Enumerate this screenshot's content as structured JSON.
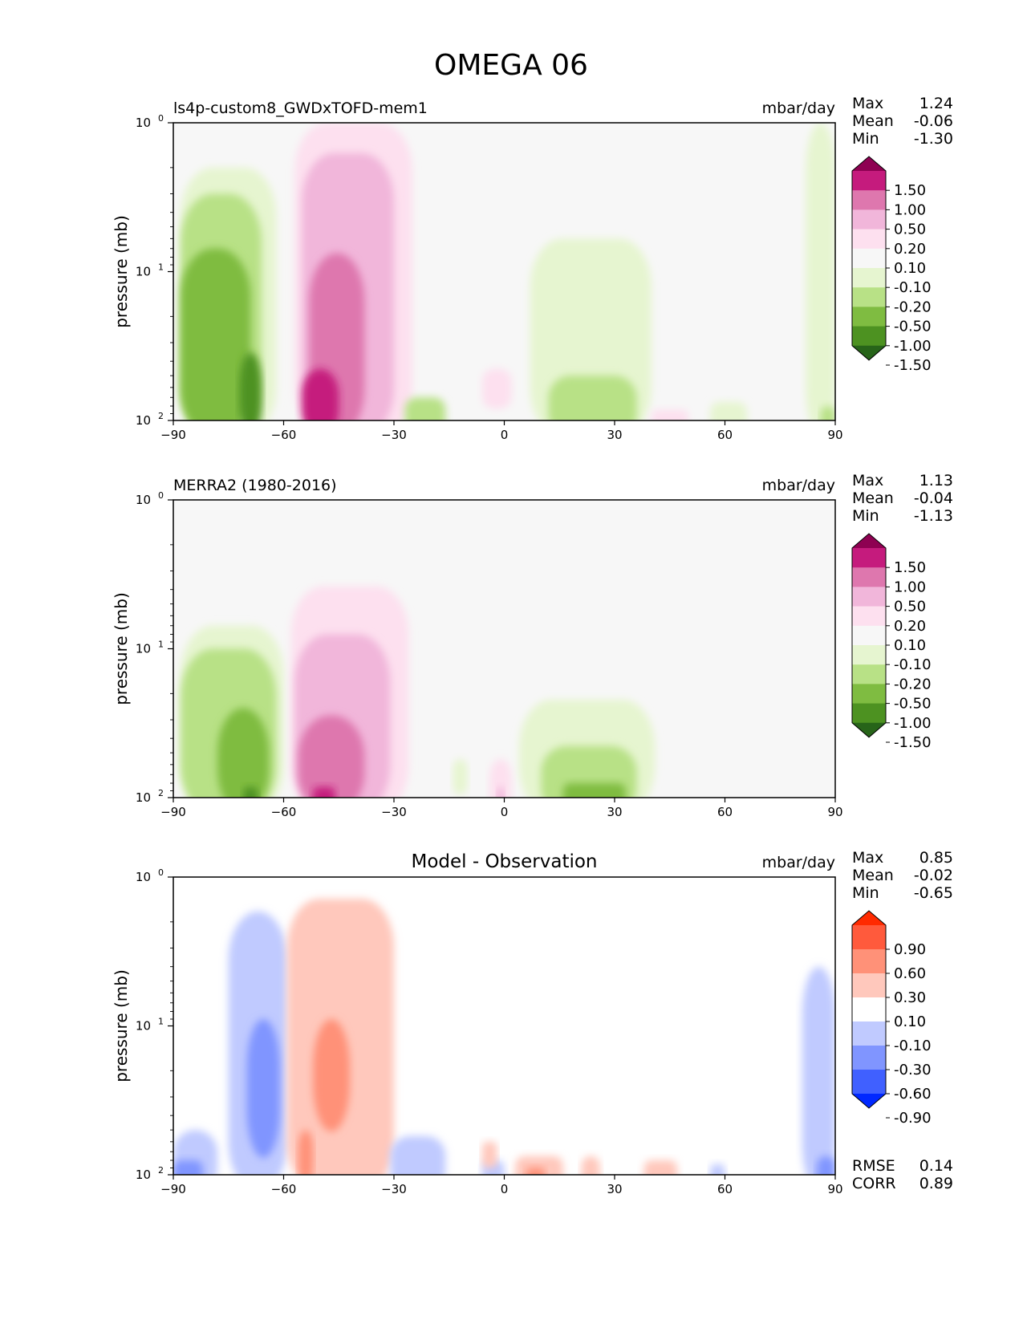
{
  "figure": {
    "title": "OMEGA 06"
  },
  "chart_data": [
    {
      "type": "heatmap",
      "title": "ls4p-custom8_GWDxTOFD-mem1",
      "units": "mbar/day",
      "ylabel": "pressure (mb)",
      "xlim": [
        -90,
        90
      ],
      "ylim": [
        100,
        1
      ],
      "yscale": "log",
      "xticks": [
        -90,
        -60,
        -30,
        0,
        30,
        60,
        90
      ],
      "xtick_labels": [
        "−90",
        "−60",
        "−30",
        "0",
        "30",
        "60",
        "90"
      ],
      "ytick_labels": [
        "10",
        "10",
        "10"
      ],
      "ytick_exps": [
        "0",
        "1",
        "2"
      ],
      "stats": {
        "labels": [
          "Max",
          "Mean",
          "Min"
        ],
        "values": [
          "1.24",
          "-0.06",
          "-1.30"
        ]
      },
      "colorbar": {
        "colors": [
          "#8e0152",
          "#c51b7d",
          "#de77ae",
          "#f1b6da",
          "#fde0ef",
          "#f7f7f7",
          "#e6f5d0",
          "#b8e186",
          "#7fbc41",
          "#4d9221",
          "#276419"
        ],
        "labels": [
          "1.50",
          "1.00",
          "0.50",
          "0.20",
          "0.10",
          "-0.10",
          "-0.20",
          "-0.50",
          "-1.00",
          "-1.50"
        ]
      },
      "field": {
        "background": "#f7f7f7",
        "regions": [
          {
            "value": -0.15,
            "lon": [
              -88,
              -62
            ],
            "p_top": 2.0,
            "p_bot": 100
          },
          {
            "value": -0.35,
            "lon": [
              -88,
              -66
            ],
            "p_top": 3.0,
            "p_bot": 100
          },
          {
            "value": -0.75,
            "lon": [
              -88,
              -69
            ],
            "p_top": 7.0,
            "p_bot": 100
          },
          {
            "value": -1.25,
            "lon": [
              -72,
              -66
            ],
            "p_top": 35,
            "p_bot": 100
          },
          {
            "value": 0.15,
            "lon": [
              -57,
              -25
            ],
            "p_top": 1.0,
            "p_bot": 100
          },
          {
            "value": 0.35,
            "lon": [
              -55,
              -30
            ],
            "p_top": 1.6,
            "p_bot": 100
          },
          {
            "value": 0.75,
            "lon": [
              -53,
              -38
            ],
            "p_top": 7.5,
            "p_bot": 100
          },
          {
            "value": 1.25,
            "lon": [
              -55,
              -45
            ],
            "p_top": 45,
            "p_bot": 100
          },
          {
            "value": -0.15,
            "lon": [
              7,
              40
            ],
            "p_top": 6.0,
            "p_bot": 100
          },
          {
            "value": -0.35,
            "lon": [
              12,
              36
            ],
            "p_top": 50,
            "p_bot": 100
          },
          {
            "value": -0.35,
            "lon": [
              -27,
              -16
            ],
            "p_top": 70,
            "p_bot": 100
          },
          {
            "value": 0.15,
            "lon": [
              -6,
              2
            ],
            "p_top": 45,
            "p_bot": 65
          },
          {
            "value": 0.15,
            "lon": [
              40,
              50
            ],
            "p_top": 85,
            "p_bot": 100
          },
          {
            "value": -0.15,
            "lon": [
              56,
              66
            ],
            "p_top": 75,
            "p_bot": 100
          },
          {
            "value": -0.15,
            "lon": [
              82,
              90
            ],
            "p_top": 1.0,
            "p_bot": 100
          },
          {
            "value": -0.35,
            "lon": [
              86,
              90
            ],
            "p_top": 80,
            "p_bot": 100
          }
        ]
      }
    },
    {
      "type": "heatmap",
      "title": "MERRA2 (1980-2016)",
      "units": "mbar/day",
      "ylabel": "pressure (mb)",
      "xlim": [
        -90,
        90
      ],
      "ylim": [
        100,
        1
      ],
      "yscale": "log",
      "xticks": [
        -90,
        -60,
        -30,
        0,
        30,
        60,
        90
      ],
      "xtick_labels": [
        "−90",
        "−60",
        "−30",
        "0",
        "30",
        "60",
        "90"
      ],
      "ytick_labels": [
        "10",
        "10",
        "10"
      ],
      "ytick_exps": [
        "0",
        "1",
        "2"
      ],
      "stats": {
        "labels": [
          "Max",
          "Mean",
          "Min"
        ],
        "values": [
          "1.13",
          "-0.04",
          "-1.13"
        ]
      },
      "colorbar": {
        "colors": [
          "#8e0152",
          "#c51b7d",
          "#de77ae",
          "#f1b6da",
          "#fde0ef",
          "#f7f7f7",
          "#e6f5d0",
          "#b8e186",
          "#7fbc41",
          "#4d9221",
          "#276419"
        ],
        "labels": [
          "1.50",
          "1.00",
          "0.50",
          "0.20",
          "0.10",
          "-0.10",
          "-0.20",
          "-0.50",
          "-1.00",
          "-1.50"
        ]
      },
      "field": {
        "background": "#f7f7f7",
        "regions": [
          {
            "value": -0.15,
            "lon": [
              -88,
              -60
            ],
            "p_top": 7.0,
            "p_bot": 100
          },
          {
            "value": -0.35,
            "lon": [
              -88,
              -62
            ],
            "p_top": 10,
            "p_bot": 100
          },
          {
            "value": -0.75,
            "lon": [
              -78,
              -64
            ],
            "p_top": 25,
            "p_bot": 100
          },
          {
            "value": -1.25,
            "lon": [
              -71,
              -67
            ],
            "p_top": 85,
            "p_bot": 100
          },
          {
            "value": 0.15,
            "lon": [
              -58,
              -26
            ],
            "p_top": 3.8,
            "p_bot": 100
          },
          {
            "value": 0.35,
            "lon": [
              -57,
              -31
            ],
            "p_top": 8.0,
            "p_bot": 100
          },
          {
            "value": 0.75,
            "lon": [
              -56,
              -38
            ],
            "p_top": 28,
            "p_bot": 100
          },
          {
            "value": 1.25,
            "lon": [
              -52,
              -46
            ],
            "p_top": 85,
            "p_bot": 100
          },
          {
            "value": -0.15,
            "lon": [
              4,
              41
            ],
            "p_top": 22,
            "p_bot": 100
          },
          {
            "value": -0.35,
            "lon": [
              10,
              36
            ],
            "p_top": 45,
            "p_bot": 100
          },
          {
            "value": -0.75,
            "lon": [
              16,
              33
            ],
            "p_top": 80,
            "p_bot": 100
          },
          {
            "value": 0.15,
            "lon": [
              -4,
              2
            ],
            "p_top": 55,
            "p_bot": 100
          },
          {
            "value": 0.35,
            "lon": [
              -2,
              0
            ],
            "p_top": 85,
            "p_bot": 100
          },
          {
            "value": -0.15,
            "lon": [
              -14,
              -10
            ],
            "p_top": 55,
            "p_bot": 75
          }
        ]
      }
    },
    {
      "type": "heatmap",
      "title": "Model - Observation",
      "units": "mbar/day",
      "ylabel": "pressure (mb)",
      "xlim": [
        -90,
        90
      ],
      "ylim": [
        100,
        1
      ],
      "yscale": "log",
      "xticks": [
        -90,
        -60,
        -30,
        0,
        30,
        60,
        90
      ],
      "xtick_labels": [
        "−90",
        "−60",
        "−30",
        "0",
        "30",
        "60",
        "90"
      ],
      "ytick_labels": [
        "10",
        "10",
        "10"
      ],
      "ytick_exps": [
        "0",
        "1",
        "2"
      ],
      "stats": {
        "labels": [
          "Max",
          "Mean",
          "Min"
        ],
        "values": [
          "0.85",
          "-0.02",
          "-0.65"
        ]
      },
      "extra_stats": {
        "labels": [
          "RMSE",
          "CORR"
        ],
        "values": [
          "0.14",
          "0.89"
        ]
      },
      "colorbar": {
        "colors": [
          "#ff2a00",
          "#ff5a3c",
          "#ff9178",
          "#ffc8bc",
          "#ffffff",
          "#c0caff",
          "#8095ff",
          "#4060ff",
          "#0028ff"
        ],
        "labels": [
          "0.90",
          "0.60",
          "0.30",
          "0.10",
          "-0.10",
          "-0.30",
          "-0.60",
          "-0.90"
        ]
      },
      "field": {
        "background": "#ffffff",
        "regions": [
          {
            "value": -0.2,
            "lon": [
              -75,
              -59
            ],
            "p_top": 1.7,
            "p_bot": 100
          },
          {
            "value": -0.45,
            "lon": [
              -70,
              -61
            ],
            "p_top": 9.0,
            "p_bot": 60
          },
          {
            "value": -0.2,
            "lon": [
              -90,
              -78
            ],
            "p_top": 50,
            "p_bot": 100
          },
          {
            "value": -0.45,
            "lon": [
              -90,
              -82
            ],
            "p_top": 80,
            "p_bot": 100
          },
          {
            "value": 0.2,
            "lon": [
              -59,
              -30
            ],
            "p_top": 1.4,
            "p_bot": 100
          },
          {
            "value": 0.45,
            "lon": [
              -52,
              -42
            ],
            "p_top": 9.0,
            "p_bot": 40
          },
          {
            "value": 0.45,
            "lon": [
              -56,
              -52
            ],
            "p_top": 50,
            "p_bot": 90
          },
          {
            "value": -0.2,
            "lon": [
              -31,
              -16
            ],
            "p_top": 55,
            "p_bot": 100
          },
          {
            "value": -0.2,
            "lon": [
              -6,
              0
            ],
            "p_top": 80,
            "p_bot": 100
          },
          {
            "value": 0.2,
            "lon": [
              3,
              16
            ],
            "p_top": 75,
            "p_bot": 100
          },
          {
            "value": 0.45,
            "lon": [
              6,
              11
            ],
            "p_top": 90,
            "p_bot": 100
          },
          {
            "value": 0.2,
            "lon": [
              -6,
              -2
            ],
            "p_top": 60,
            "p_bot": 70
          },
          {
            "value": 0.2,
            "lon": [
              38,
              47
            ],
            "p_top": 80,
            "p_bot": 100
          },
          {
            "value": 0.2,
            "lon": [
              21,
              26
            ],
            "p_top": 75,
            "p_bot": 100
          },
          {
            "value": -0.2,
            "lon": [
              56,
              60
            ],
            "p_top": 85,
            "p_bot": 100
          },
          {
            "value": -0.2,
            "lon": [
              81,
              90
            ],
            "p_top": 4.0,
            "p_bot": 100
          },
          {
            "value": -0.45,
            "lon": [
              85,
              90
            ],
            "p_top": 75,
            "p_bot": 100
          }
        ]
      }
    }
  ]
}
